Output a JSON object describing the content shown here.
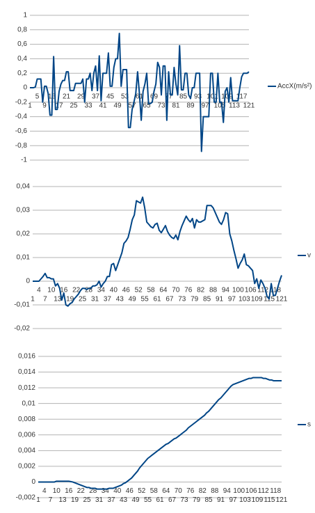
{
  "chart_data": [
    {
      "type": "line",
      "categories": [
        1,
        null,
        null,
        null,
        5,
        null,
        null,
        null,
        9,
        null,
        null,
        null,
        13,
        null,
        null,
        null,
        17,
        null,
        null,
        null,
        21,
        null,
        null,
        null,
        25,
        null,
        null,
        null,
        29,
        null,
        null,
        null,
        33,
        null,
        null,
        null,
        37,
        null,
        null,
        null,
        41,
        null,
        null,
        null,
        45,
        null,
        null,
        null,
        49,
        null,
        null,
        null,
        53,
        null,
        null,
        null,
        57,
        null,
        null,
        null,
        61,
        null,
        null,
        null,
        65,
        null,
        null,
        null,
        69,
        null,
        null,
        null,
        73,
        null,
        null,
        null,
        77,
        null,
        null,
        null,
        81,
        null,
        null,
        null,
        85,
        null,
        null,
        null,
        89,
        null,
        null,
        null,
        93,
        null,
        null,
        null,
        97,
        null,
        null,
        null,
        101,
        null,
        null,
        null,
        105,
        null,
        null,
        null,
        109,
        null,
        null,
        null,
        113,
        null,
        null,
        null,
        117,
        null,
        null,
        null,
        121
      ],
      "series": [
        {
          "name": "AccX(m/s²)",
          "color": "#004586",
          "values": [
            0,
            0,
            0,
            0.01,
            0.12,
            0.12,
            0.12,
            -0.2,
            0.02,
            0.02,
            -0.08,
            -0.38,
            -0.38,
            0.43,
            -0.3,
            -0.3,
            -0.05,
            0.05,
            0.1,
            0.1,
            0.22,
            0.22,
            -0.04,
            -0.04,
            -0.04,
            0.06,
            0.06,
            0.06,
            0.06,
            0.12,
            -0.2,
            0.12,
            0.12,
            0.2,
            -0.04,
            0.2,
            0.3,
            -0.04,
            0.44,
            -0.18,
            0.2,
            0.2,
            0.2,
            0.48,
            0.02,
            0.02,
            0.28,
            0.4,
            0.4,
            0.75,
            0.02,
            0.25,
            0.25,
            0.25,
            -0.55,
            -0.55,
            -0.3,
            -0.2,
            -0.08,
            0.22,
            -0.08,
            -0.45,
            -0.05,
            0.05,
            0.2,
            -0.22,
            -0.22,
            -0.2,
            -0.05,
            0.05,
            0.35,
            0.28,
            -0.1,
            0.3,
            0.3,
            -0.45,
            0.22,
            -0.1,
            -0.1,
            0.28,
            0.05,
            -0.1,
            0.58,
            -0.03,
            -0.03,
            0.2,
            0.2,
            -0.1,
            -0.15,
            0,
            0,
            0.2,
            0.2,
            0.2,
            -0.88,
            -0.4,
            -0.4,
            -0.4,
            -0.4,
            0.2,
            0.2,
            -0.2,
            -0.2,
            0.2,
            -0.2,
            -0.2,
            -0.48,
            -0.05,
            0,
            -0.2,
            0.14,
            -0.18,
            -0.18,
            -0.18,
            -0.18,
            0,
            0.15,
            0.2,
            0.2,
            0.2,
            0.22
          ]
        }
      ],
      "ylim": [
        -1,
        1
      ],
      "yticks": [
        -1,
        {
          "value": -0.8,
          "label": "-0,8"
        },
        {
          "value": -0.6,
          "label": "-0,6"
        },
        {
          "value": -0.4,
          "label": "-0,4"
        },
        {
          "value": -0.2,
          "label": "-0,2"
        },
        0,
        {
          "value": 0.2,
          "label": "0,2"
        },
        {
          "value": 0.4,
          "label": "0,4"
        },
        {
          "value": 0.6,
          "label": "0,6"
        },
        {
          "value": 0.8,
          "label": "0,8"
        },
        1
      ],
      "grid": true,
      "legend": "right"
    },
    {
      "type": "line",
      "categories": [
        1,
        null,
        null,
        4,
        null,
        null,
        7,
        null,
        null,
        10,
        null,
        null,
        13,
        null,
        null,
        16,
        null,
        null,
        19,
        null,
        null,
        22,
        null,
        null,
        25,
        null,
        null,
        28,
        null,
        null,
        31,
        null,
        null,
        34,
        null,
        null,
        37,
        null,
        null,
        40,
        null,
        null,
        43,
        null,
        null,
        46,
        null,
        null,
        49,
        null,
        null,
        52,
        null,
        null,
        55,
        null,
        null,
        58,
        null,
        null,
        61,
        null,
        null,
        64,
        null,
        null,
        67,
        null,
        null,
        70,
        null,
        null,
        73,
        null,
        null,
        76,
        null,
        null,
        79,
        null,
        null,
        82,
        null,
        null,
        85,
        null,
        null,
        88,
        null,
        null,
        91,
        null,
        null,
        94,
        null,
        null,
        97,
        null,
        null,
        100,
        null,
        null,
        103,
        null,
        null,
        106,
        null,
        null,
        109,
        null,
        null,
        112,
        null,
        null,
        115,
        null,
        null,
        118,
        null,
        null,
        121
      ],
      "series": [
        {
          "name": "v",
          "color": "#004586",
          "values": [
            0,
            0,
            0,
            0,
            0.001,
            0.002,
            0.0033,
            0.0015,
            0.0015,
            0.001,
            0.001,
            -0.002,
            -0.001,
            -0.003,
            -0.008,
            -0.005,
            -0.01,
            -0.0105,
            -0.0095,
            -0.009,
            -0.0075,
            -0.0065,
            -0.0055,
            -0.004,
            -0.003,
            -0.003,
            -0.0035,
            -0.003,
            -0.003,
            -0.002,
            -0.002,
            -0.0015,
            0,
            -0.0025,
            -0.001,
            0,
            0.002,
            0.002,
            0.007,
            0.0075,
            0.0045,
            0.007,
            0.0095,
            0.012,
            0.016,
            0.017,
            0.0185,
            0.022,
            0.026,
            0.028,
            0.034,
            0.0335,
            0.033,
            0.0355,
            0.031,
            0.025,
            0.024,
            0.023,
            0.0225,
            0.024,
            0.0245,
            0.0215,
            0.0205,
            0.022,
            0.0235,
            0.021,
            0.0195,
            0.0185,
            0.018,
            0.0195,
            0.0175,
            0.021,
            0.0235,
            0.0255,
            0.0275,
            0.026,
            0.025,
            0.0265,
            0.0225,
            0.026,
            0.025,
            0.025,
            0.0255,
            0.026,
            0.032,
            0.032,
            0.032,
            0.031,
            0.029,
            0.027,
            0.025,
            0.024,
            0.026,
            0.029,
            0.0285,
            0.02,
            0.017,
            0.013,
            0.0095,
            0.0055,
            0.0075,
            0.009,
            0.0115,
            0.007,
            0.0065,
            0.0055,
            0.0045,
            -0.001,
            0.001,
            -0.003,
            0.0005,
            -0.001,
            -0.003,
            -0.0065,
            -0.0075,
            -0.001,
            -0.006,
            -0.006,
            -0.003,
            0,
            0.0025
          ]
        }
      ],
      "ylim": [
        -0.02,
        0.04
      ],
      "yticks": [
        {
          "value": -0.02,
          "label": "-0,02"
        },
        {
          "value": -0.01,
          "label": "-0,01"
        },
        0,
        {
          "value": 0.01,
          "label": "0,01"
        },
        {
          "value": 0.02,
          "label": "0,02"
        },
        {
          "value": 0.03,
          "label": "0,03"
        },
        {
          "value": 0.04,
          "label": "0,04"
        }
      ],
      "grid": true,
      "legend": "right"
    },
    {
      "type": "line",
      "categories": [
        1,
        null,
        null,
        4,
        null,
        null,
        7,
        null,
        null,
        10,
        null,
        null,
        13,
        null,
        null,
        16,
        null,
        null,
        19,
        null,
        null,
        22,
        null,
        null,
        25,
        null,
        null,
        28,
        null,
        null,
        31,
        null,
        null,
        34,
        null,
        null,
        37,
        null,
        null,
        40,
        null,
        null,
        43,
        null,
        null,
        46,
        null,
        null,
        49,
        null,
        null,
        52,
        null,
        null,
        55,
        null,
        null,
        58,
        null,
        null,
        61,
        null,
        null,
        64,
        null,
        null,
        67,
        null,
        null,
        70,
        null,
        null,
        73,
        null,
        null,
        76,
        null,
        null,
        79,
        null,
        null,
        82,
        null,
        null,
        85,
        null,
        null,
        88,
        null,
        null,
        91,
        null,
        null,
        94,
        null,
        null,
        97,
        null,
        null,
        100,
        null,
        null,
        103,
        null,
        null,
        106,
        null,
        null,
        109,
        null,
        null,
        112,
        null,
        null,
        115,
        null,
        null,
        118,
        null,
        null,
        121
      ],
      "series": [
        {
          "name": "s",
          "color": "#004586",
          "values": [
            0,
            0,
            0,
            0,
            0,
            0,
            0,
            0,
            0,
            0.0001,
            0.0001,
            0.0001,
            0.0001,
            0.0001,
            0.0001,
            0.0001,
            5e-05,
            0,
            -0.0001,
            -0.0002,
            -0.0003,
            -0.0004,
            -0.0005,
            -0.0006,
            -0.0007,
            -0.0007,
            -0.0008,
            -0.0008,
            -0.0008,
            -0.0009,
            -0.0009,
            -0.0009,
            -0.0009,
            -0.0009,
            -0.0009,
            -0.0008,
            -0.0008,
            -0.0008,
            -0.0007,
            -0.0006,
            -0.0005,
            -0.0004,
            -0.0002,
            -0.0001,
            0.0001,
            0.0003,
            0.0005,
            0.0008,
            0.0011,
            0.0014,
            0.0018,
            0.0021,
            0.0024,
            0.0027,
            0.003,
            0.0032,
            0.0034,
            0.0036,
            0.0038,
            0.004,
            0.0042,
            0.0044,
            0.0046,
            0.0048,
            0.0049,
            0.0051,
            0.0053,
            0.0055,
            0.0056,
            0.0058,
            0.006,
            0.0062,
            0.0064,
            0.0066,
            0.0069,
            0.0071,
            0.0073,
            0.0075,
            0.0077,
            0.0079,
            0.0081,
            0.0083,
            0.0085,
            0.0088,
            0.009,
            0.0093,
            0.0096,
            0.0099,
            0.0102,
            0.0105,
            0.0107,
            0.011,
            0.0113,
            0.0116,
            0.0119,
            0.0122,
            0.0124,
            0.0125,
            0.0126,
            0.0127,
            0.0128,
            0.0129,
            0.013,
            0.0131,
            0.0132,
            0.0132,
            0.0133,
            0.0133,
            0.0133,
            0.0133,
            0.0133,
            0.0132,
            0.0132,
            0.0131,
            0.013,
            0.013,
            0.0129,
            0.0129,
            0.0129,
            0.0129,
            0.0129
          ]
        }
      ],
      "ylim": [
        -0.002,
        0.016
      ],
      "yticks": [
        {
          "value": -0.002,
          "label": "-0,002"
        },
        0,
        {
          "value": 0.002,
          "label": "0,002"
        },
        {
          "value": 0.004,
          "label": "0,004"
        },
        {
          "value": 0.006,
          "label": "0,006"
        },
        {
          "value": 0.008,
          "label": "0,008"
        },
        {
          "value": 0.01,
          "label": "0,01"
        },
        {
          "value": 0.012,
          "label": "0,012"
        },
        {
          "value": 0.014,
          "label": "0,014"
        },
        {
          "value": 0.016,
          "label": "0,016"
        }
      ],
      "grid": true,
      "legend": "right"
    }
  ]
}
